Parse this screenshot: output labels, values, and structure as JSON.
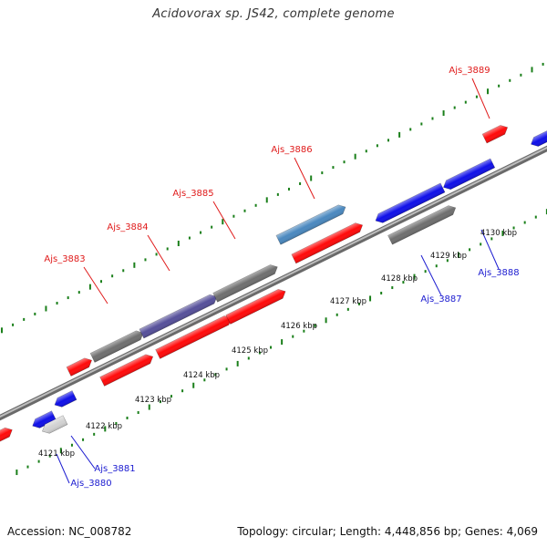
{
  "title": "Acidovorax sp. JS42, complete genome",
  "footer": {
    "accession": "Accession: NC_008782",
    "summary": "Topology: circular; Length: 4,448,856 bp; Genes: 4,069"
  },
  "colors": {
    "forward_label": "#e01b1b",
    "reverse_label": "#1b1bd0",
    "red_gene": "#ff0a0a",
    "blue_gene": "#1010e8",
    "gray_gene": "#6f6f6f",
    "light_gray_gene": "#d2d2d2",
    "purple_gene": "#56509a",
    "steel_gene": "#4a88bf",
    "green_gene": "#28c028",
    "tick": "#1a7f1a",
    "backbone": "#9a9a9a"
  },
  "scale_labels": [
    "4121 kbp",
    "4122 kbp",
    "4123 kbp",
    "4124 kbp",
    "4125 kbp",
    "4126 kbp",
    "4127 kbp",
    "4128 kbp",
    "4129 kbp",
    "4130 kbp"
  ],
  "labels": [
    {
      "text": "Ajs_3880",
      "strand": "reverse"
    },
    {
      "text": "Ajs_3881",
      "strand": "reverse"
    },
    {
      "text": "Ajs_3883",
      "strand": "forward"
    },
    {
      "text": "Ajs_3884",
      "strand": "forward"
    },
    {
      "text": "Ajs_3885",
      "strand": "forward"
    },
    {
      "text": "Ajs_3886",
      "strand": "forward"
    },
    {
      "text": "Ajs_3887",
      "strand": "reverse"
    },
    {
      "text": "Ajs_3888",
      "strand": "reverse"
    },
    {
      "text": "Ajs_3889",
      "strand": "forward"
    }
  ]
}
